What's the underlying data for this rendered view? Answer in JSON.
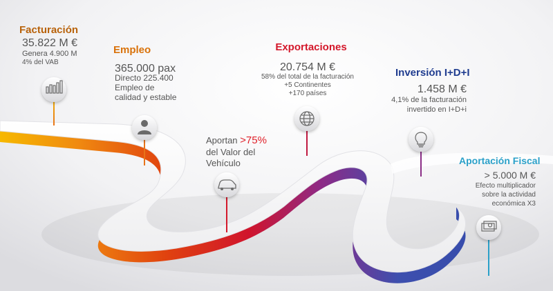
{
  "colors": {
    "facturacion": "#b8620a",
    "empleo": "#d9720a",
    "exportaciones": "#d4182b",
    "inversion": "#1f3c8f",
    "aportacion_fiscal": "#2aa0c9",
    "highlight": "#e0202a",
    "stem_yellow": "#f0b400",
    "stem_orange": "#e8741a",
    "stem_red": "#d4182b",
    "stem_purple": "#8a2d86",
    "stem_blue": "#3556b0"
  },
  "milestones": {
    "facturacion": {
      "title": "Facturación",
      "value": "35.822 M €",
      "line1": "Genera 4.900 M",
      "line2": "4% del VAB",
      "icon": "bar-chart-icon"
    },
    "empleo": {
      "title": "Empleo",
      "value": "365.000 pax",
      "line1": "Directo 225.400",
      "line2": "Empleo de",
      "line3": "calidad y estable",
      "icon": "person-icon"
    },
    "vehiculo": {
      "prefix": "Aportan ",
      "highlight": ">75%",
      "line2": "del Valor del",
      "line3": "Vehículo",
      "icon": "car-icon"
    },
    "exportaciones": {
      "title": "Exportaciones",
      "value": "20.754 M €",
      "line1": "58% del total de la facturación",
      "line2": "+5 Continentes",
      "line3": "+170 países",
      "icon": "globe-icon"
    },
    "inversion": {
      "title": "Inversión I+D+I",
      "value": "1.458 M €",
      "line1": "4,1% de la facturación",
      "line2": "invertido en I+D+i",
      "icon": "lightbulb-icon"
    },
    "aportacion_fiscal": {
      "title": "Aportación Fiscal",
      "value": "> 5.000 M €",
      "line1": "Efecto multiplicador",
      "line2": "sobre la actividad",
      "line3": "económica X3",
      "icon": "money-icon"
    }
  }
}
